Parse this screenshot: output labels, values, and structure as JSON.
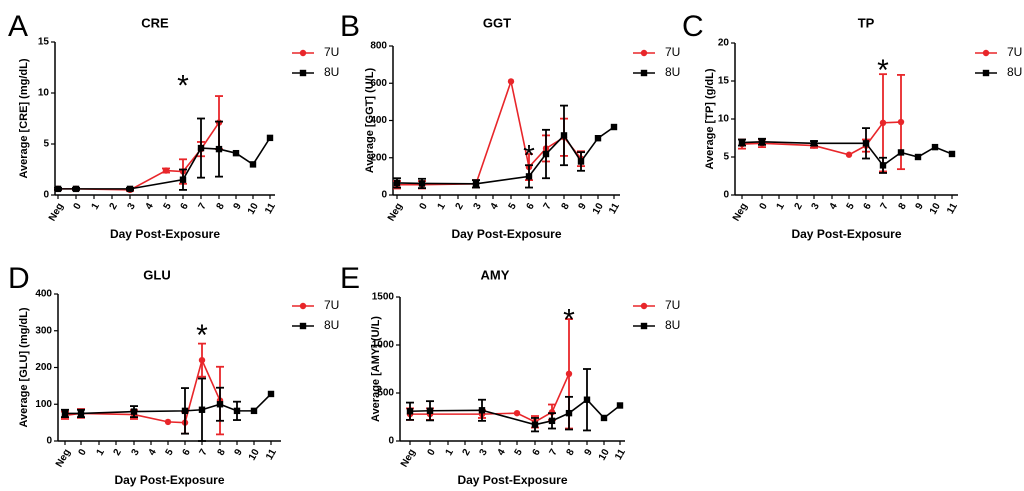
{
  "series_styles": [
    {
      "name": "7U",
      "color": "#e8262a",
      "marker": "circle"
    },
    {
      "name": "8U",
      "color": "#000000",
      "marker": "square"
    }
  ],
  "chart_data": [
    {
      "panel": "A",
      "type": "line",
      "title": "CRE",
      "xlabel": "Day Post-Exposure",
      "ylabel": "Average [CRE] (mg/dL)",
      "categories": [
        "Neg",
        "0",
        "1",
        "2",
        "3",
        "4",
        "5",
        "6",
        "7",
        "8",
        "9",
        "10",
        "11"
      ],
      "ylim": [
        0,
        15
      ],
      "yticks": [
        0,
        5,
        10,
        15
      ],
      "annotation": {
        "text": "*",
        "x": "6",
        "y": 11.5
      },
      "series": [
        {
          "name": "7U",
          "points": [
            {
              "x": "Neg",
              "y": 0.6,
              "err": 0.1
            },
            {
              "x": "0",
              "y": 0.6,
              "err": 0.1
            },
            {
              "x": "3",
              "y": 0.5,
              "err": 0.1
            },
            {
              "x": "5",
              "y": 2.4,
              "err": 0.2
            },
            {
              "x": "6",
              "y": 2.3,
              "err": 1.2
            },
            {
              "x": "7",
              "y": 4.5,
              "err": 0.7
            },
            {
              "x": "8",
              "y": 7.1,
              "err": 2.6
            }
          ]
        },
        {
          "name": "8U",
          "points": [
            {
              "x": "Neg",
              "y": 0.6,
              "err": 0.1
            },
            {
              "x": "0",
              "y": 0.6,
              "err": 0.1
            },
            {
              "x": "3",
              "y": 0.6,
              "err": 0.1
            },
            {
              "x": "6",
              "y": 1.5,
              "err": 1.0
            },
            {
              "x": "7",
              "y": 4.6,
              "err": 2.9
            },
            {
              "x": "8",
              "y": 4.5,
              "err": 2.7
            },
            {
              "x": "9",
              "y": 4.1,
              "err": 0
            },
            {
              "x": "10",
              "y": 3.0,
              "err": 0
            },
            {
              "x": "11",
              "y": 5.6,
              "err": 0
            }
          ]
        }
      ]
    },
    {
      "panel": "B",
      "type": "line",
      "title": "GGT",
      "xlabel": "Day Post-Exposure",
      "ylabel": "Average [GGT] (U/L)",
      "categories": [
        "Neg",
        "0",
        "1",
        "2",
        "3",
        "4",
        "5",
        "6",
        "7",
        "8",
        "9",
        "10",
        "11"
      ],
      "ylim": [
        0,
        800
      ],
      "yticks": [
        0,
        200,
        400,
        600,
        800
      ],
      "annotation": {
        "text": "*",
        "x": "6",
        "y": 255
      },
      "series": [
        {
          "name": "7U",
          "points": [
            {
              "x": "Neg",
              "y": 55,
              "err": 20
            },
            {
              "x": "0",
              "y": 55,
              "err": 20
            },
            {
              "x": "3",
              "y": 60,
              "err": 20
            },
            {
              "x": "5",
              "y": 610,
              "err": 0
            },
            {
              "x": "6",
              "y": 150,
              "err": 70
            },
            {
              "x": "7",
              "y": 250,
              "err": 70
            },
            {
              "x": "8",
              "y": 310,
              "err": 100
            },
            {
              "x": "9",
              "y": 195,
              "err": 40
            }
          ]
        },
        {
          "name": "8U",
          "points": [
            {
              "x": "Neg",
              "y": 65,
              "err": 25
            },
            {
              "x": "0",
              "y": 62,
              "err": 25
            },
            {
              "x": "3",
              "y": 60,
              "err": 20
            },
            {
              "x": "6",
              "y": 100,
              "err": 60
            },
            {
              "x": "7",
              "y": 220,
              "err": 130
            },
            {
              "x": "8",
              "y": 320,
              "err": 160
            },
            {
              "x": "9",
              "y": 180,
              "err": 50
            },
            {
              "x": "10",
              "y": 305,
              "err": 0
            },
            {
              "x": "11",
              "y": 365,
              "err": 0
            }
          ]
        }
      ]
    },
    {
      "panel": "C",
      "type": "line",
      "title": "TP",
      "xlabel": "Day Post-Exposure",
      "ylabel": "Average [TP] (g/dL)",
      "categories": [
        "Neg",
        "0",
        "1",
        "2",
        "3",
        "4",
        "5",
        "6",
        "7",
        "8",
        "9",
        "10",
        "11"
      ],
      "ylim": [
        0,
        20
      ],
      "yticks": [
        0,
        5,
        10,
        15,
        20
      ],
      "annotation": {
        "text": "*",
        "x": "7",
        "y": 17.5
      },
      "series": [
        {
          "name": "7U",
          "points": [
            {
              "x": "Neg",
              "y": 6.7,
              "err": 0.6
            },
            {
              "x": "0",
              "y": 6.8,
              "err": 0.5
            },
            {
              "x": "3",
              "y": 6.5,
              "err": 0.3
            },
            {
              "x": "5",
              "y": 5.3,
              "err": 0
            },
            {
              "x": "6",
              "y": 6.5,
              "err": 0.8
            },
            {
              "x": "7",
              "y": 9.5,
              "err": 6.4
            },
            {
              "x": "8",
              "y": 9.6,
              "err": 6.2
            }
          ]
        },
        {
          "name": "8U",
          "points": [
            {
              "x": "Neg",
              "y": 6.9,
              "err": 0.4
            },
            {
              "x": "0",
              "y": 7.0,
              "err": 0.4
            },
            {
              "x": "3",
              "y": 6.8,
              "err": 0.3
            },
            {
              "x": "6",
              "y": 6.8,
              "err": 2.0
            },
            {
              "x": "7",
              "y": 3.9,
              "err": 1.0
            },
            {
              "x": "8",
              "y": 5.6,
              "err": 0
            },
            {
              "x": "9",
              "y": 5.0,
              "err": 0
            },
            {
              "x": "10",
              "y": 6.3,
              "err": 0
            },
            {
              "x": "11",
              "y": 5.4,
              "err": 0
            }
          ]
        }
      ]
    },
    {
      "panel": "D",
      "type": "line",
      "title": "GLU",
      "xlabel": "Day Post-Exposure",
      "ylabel": "Average [GLU] (mg/dL)",
      "categories": [
        "Neg",
        "0",
        "1",
        "2",
        "3",
        "4",
        "5",
        "6",
        "7",
        "8",
        "9",
        "10",
        "11"
      ],
      "ylim": [
        0,
        400
      ],
      "yticks": [
        0,
        100,
        200,
        300,
        400
      ],
      "annotation": {
        "text": "*",
        "x": "7",
        "y": 310
      },
      "series": [
        {
          "name": "7U",
          "points": [
            {
              "x": "Neg",
              "y": 70,
              "err": 10
            },
            {
              "x": "0",
              "y": 75,
              "err": 12
            },
            {
              "x": "3",
              "y": 72,
              "err": 12
            },
            {
              "x": "5",
              "y": 52,
              "err": 0
            },
            {
              "x": "6",
              "y": 50,
              "err": 30
            },
            {
              "x": "7",
              "y": 220,
              "err": 45
            },
            {
              "x": "8",
              "y": 110,
              "err": 92
            }
          ]
        },
        {
          "name": "8U",
          "points": [
            {
              "x": "Neg",
              "y": 75,
              "err": 10
            },
            {
              "x": "0",
              "y": 75,
              "err": 10
            },
            {
              "x": "3",
              "y": 80,
              "err": 15
            },
            {
              "x": "6",
              "y": 82,
              "err": 62
            },
            {
              "x": "7",
              "y": 85,
              "err": 85
            },
            {
              "x": "8",
              "y": 100,
              "err": 45
            },
            {
              "x": "9",
              "y": 82,
              "err": 25
            },
            {
              "x": "10",
              "y": 82,
              "err": 0
            },
            {
              "x": "11",
              "y": 128,
              "err": 0
            }
          ]
        }
      ]
    },
    {
      "panel": "E",
      "type": "line",
      "title": "AMY",
      "xlabel": "Day Post-Exposure",
      "ylabel": "Average [AMY] (U/L)",
      "categories": [
        "Neg",
        "0",
        "1",
        "2",
        "3",
        "4",
        "5",
        "6",
        "7",
        "8",
        "9",
        "10",
        "11"
      ],
      "ylim": [
        0,
        1500
      ],
      "yticks": [
        0,
        500,
        1000,
        1500
      ],
      "annotation": {
        "text": "*",
        "x": "8",
        "y": 1350
      },
      "series": [
        {
          "name": "7U",
          "points": [
            {
              "x": "Neg",
              "y": 280,
              "err": 60
            },
            {
              "x": "0",
              "y": 280,
              "err": 60
            },
            {
              "x": "3",
              "y": 280,
              "err": 40
            },
            {
              "x": "5",
              "y": 290,
              "err": 0
            },
            {
              "x": "6",
              "y": 200,
              "err": 60
            },
            {
              "x": "7",
              "y": 300,
              "err": 80
            },
            {
              "x": "8",
              "y": 700,
              "err": 570
            }
          ]
        },
        {
          "name": "8U",
          "points": [
            {
              "x": "Neg",
              "y": 310,
              "err": 90
            },
            {
              "x": "0",
              "y": 315,
              "err": 100
            },
            {
              "x": "3",
              "y": 320,
              "err": 110
            },
            {
              "x": "6",
              "y": 170,
              "err": 70
            },
            {
              "x": "7",
              "y": 210,
              "err": 80
            },
            {
              "x": "8",
              "y": 290,
              "err": 170
            },
            {
              "x": "9",
              "y": 430,
              "err": 320
            },
            {
              "x": "10",
              "y": 240,
              "err": 0
            },
            {
              "x": "11",
              "y": 370,
              "err": 0
            }
          ]
        }
      ]
    }
  ]
}
